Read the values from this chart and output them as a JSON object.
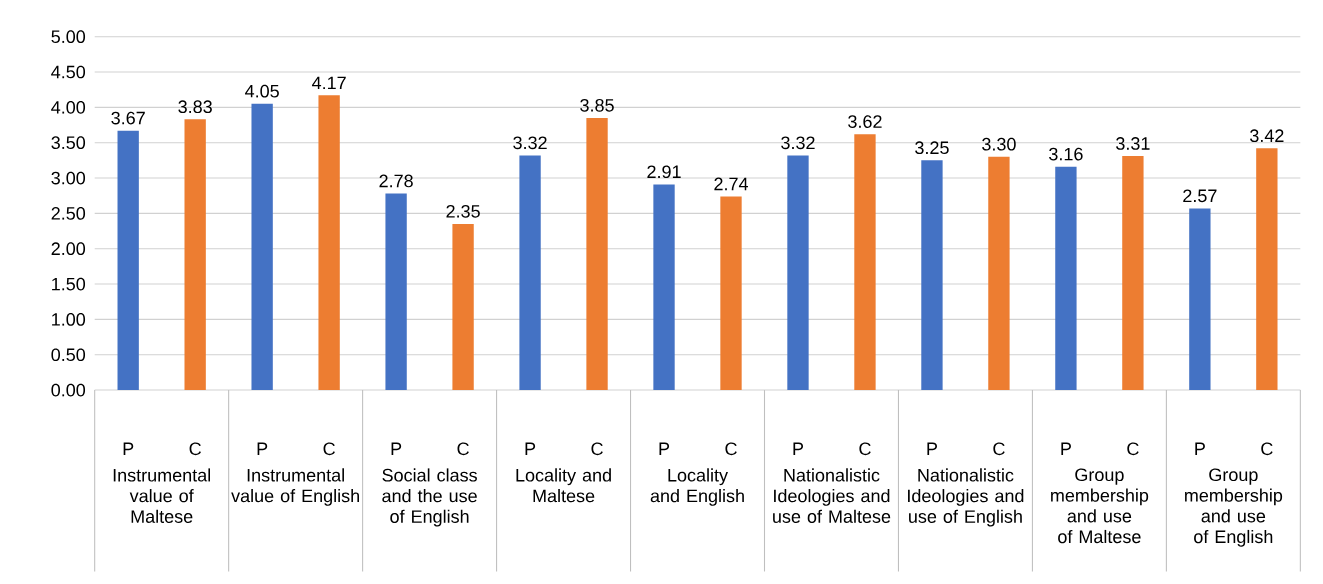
{
  "chart_data": {
    "type": "bar",
    "categories": [
      "Instrumental value of Maltese",
      "Instrumental value of English",
      "Social class and the use of English",
      "Locality and Maltese",
      "Locality and English",
      "Nationalistic Ideologies and use of Maltese",
      "Nationalistic Ideologies and use of English",
      "Group membership and use of Maltese",
      "Group membership and use of English"
    ],
    "series": [
      {
        "name": "P",
        "color": "#4472c4",
        "values": [
          3.67,
          4.05,
          2.78,
          3.32,
          2.91,
          3.32,
          3.25,
          3.16,
          2.57
        ],
        "value_labels": [
          "3.67",
          "4.05",
          "2.78",
          "3.32",
          "2.91",
          "3.32",
          "3.25",
          "3.16",
          "2.57"
        ]
      },
      {
        "name": "C",
        "color": "#ed7d31",
        "values": [
          3.83,
          4.17,
          2.35,
          3.85,
          2.74,
          3.62,
          3.3,
          3.31,
          3.42
        ],
        "value_labels": [
          "3.83",
          "4.17",
          "2.35",
          "3.85",
          "2.74",
          "3.62",
          "3.30",
          "3.31",
          "3.42"
        ]
      }
    ],
    "ylim": [
      0,
      5
    ],
    "yticks": [
      {
        "value": 0,
        "label": "0.00"
      },
      {
        "value": 0.5,
        "label": "0.50"
      },
      {
        "value": 1,
        "label": "1.00"
      },
      {
        "value": 1.5,
        "label": "1.50"
      },
      {
        "value": 2,
        "label": "2.00"
      },
      {
        "value": 2.5,
        "label": "2.50"
      },
      {
        "value": 3,
        "label": "3.00"
      },
      {
        "value": 3.5,
        "label": "3.50"
      },
      {
        "value": 4,
        "label": "4.00"
      },
      {
        "value": 4.5,
        "label": "4.50"
      },
      {
        "value": 5,
        "label": "5.00"
      }
    ],
    "grid": "y"
  }
}
